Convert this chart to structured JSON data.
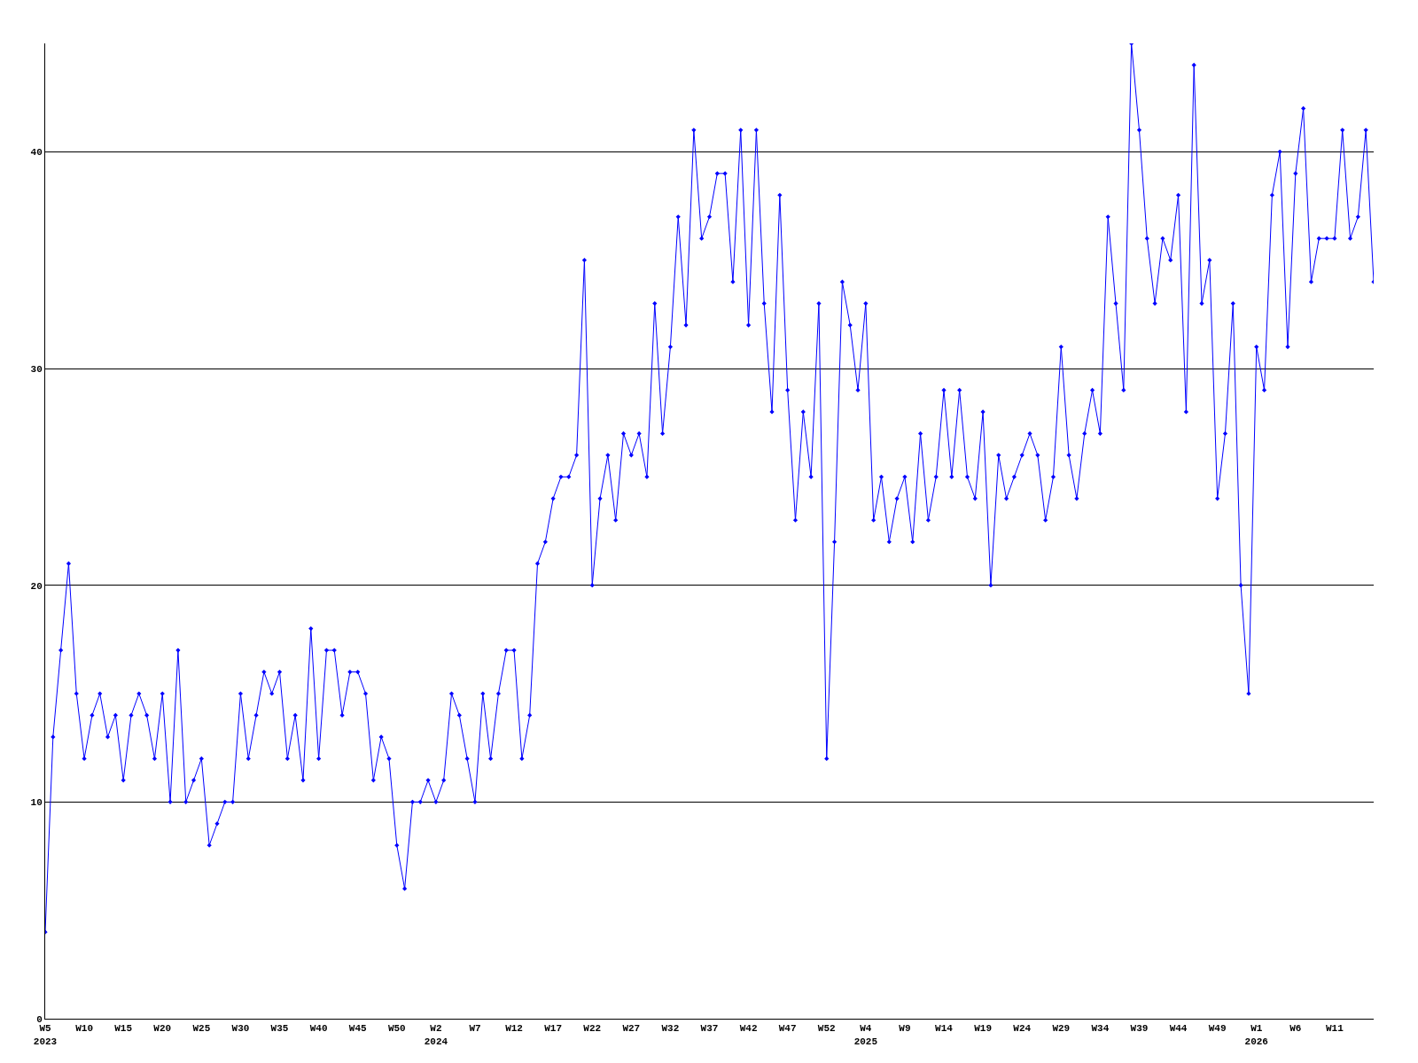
{
  "chart_data": {
    "type": "line",
    "categories": [
      "W5\n2023",
      null,
      null,
      null,
      null,
      "W10",
      null,
      null,
      null,
      null,
      "W15",
      null,
      null,
      null,
      null,
      "W20",
      null,
      null,
      null,
      null,
      "W25",
      null,
      null,
      null,
      null,
      "W30",
      null,
      null,
      null,
      null,
      "W35",
      null,
      null,
      null,
      null,
      "W40",
      null,
      null,
      null,
      null,
      "W45",
      null,
      null,
      null,
      null,
      "W50",
      null,
      null,
      null,
      null,
      "W2\n2024",
      null,
      null,
      null,
      null,
      "W7",
      null,
      null,
      null,
      null,
      "W12",
      null,
      null,
      null,
      null,
      "W17",
      null,
      null,
      null,
      null,
      "W22",
      null,
      null,
      null,
      null,
      "W27",
      null,
      null,
      null,
      null,
      "W32",
      null,
      null,
      null,
      null,
      "W37",
      null,
      null,
      null,
      null,
      "W42",
      null,
      null,
      null,
      null,
      "W47",
      null,
      null,
      null,
      null,
      "W52",
      null,
      null,
      null,
      null,
      "W4\n2025",
      null,
      null,
      null,
      null,
      "W9",
      null,
      null,
      null,
      null,
      "W14",
      null,
      null,
      null,
      null,
      "W19",
      null,
      null,
      null,
      null,
      "W24",
      null,
      null,
      null,
      null,
      "W29",
      null,
      null,
      null,
      null,
      "W34",
      null,
      null,
      null,
      null,
      "W39",
      null,
      null,
      null,
      null,
      "W44",
      null,
      null,
      null,
      null,
      "W49",
      null,
      null,
      null,
      null,
      "W1\n2026",
      null,
      null,
      null,
      null,
      "W6",
      null,
      null,
      null,
      null,
      "W11",
      null,
      null,
      null,
      null,
      null
    ],
    "series": [
      {
        "color": "#0000ff",
        "values": [
          4,
          13,
          17,
          21,
          15,
          12,
          14,
          15,
          13,
          14,
          11,
          14,
          15,
          14,
          12,
          15,
          10,
          17,
          10,
          11,
          12,
          8,
          9,
          10,
          10,
          15,
          12,
          14,
          16,
          15,
          16,
          12,
          14,
          11,
          18,
          12,
          17,
          17,
          14,
          16,
          16,
          15,
          11,
          13,
          12,
          8,
          6,
          10,
          10,
          11,
          10,
          11,
          15,
          14,
          12,
          10,
          15,
          12,
          15,
          17,
          17,
          12,
          14,
          21,
          22,
          24,
          25,
          25,
          26,
          35,
          20,
          24,
          26,
          23,
          27,
          26,
          27,
          25,
          33,
          27,
          31,
          37,
          32,
          41,
          36,
          37,
          39,
          39,
          34,
          41,
          32,
          41,
          33,
          28,
          38,
          29,
          23,
          28,
          25,
          33,
          12,
          22,
          34,
          32,
          29,
          33,
          23,
          25,
          22,
          24,
          25,
          22,
          27,
          23,
          25,
          29,
          25,
          29,
          25,
          24,
          28,
          20,
          26,
          24,
          25,
          26,
          27,
          26,
          23,
          25,
          31,
          26,
          24,
          27,
          29,
          27,
          37,
          33,
          29,
          45,
          41,
          36,
          33,
          36,
          35,
          38,
          28,
          44,
          33,
          35,
          24,
          27,
          33,
          20,
          15,
          31,
          29,
          38,
          40,
          31,
          39,
          42,
          34,
          36,
          36,
          36,
          41,
          36,
          37,
          41,
          34
        ]
      }
    ],
    "ylim": [
      0,
      45
    ],
    "yticks": [
      0,
      10,
      20,
      30,
      40
    ],
    "grid": "y",
    "marker": "diamond",
    "line_style": "solid"
  }
}
